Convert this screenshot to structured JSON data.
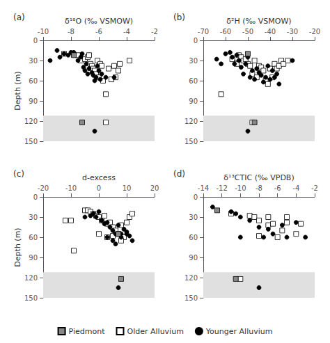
{
  "chart_data": [
    {
      "type": "scatter",
      "title": "(a)",
      "xlabel": "δ¹⁸O (‰ VSMOW)",
      "ylabel": "Depth (m)",
      "xlim": [
        -10,
        -2
      ],
      "xticks": [
        -10,
        -8,
        -6,
        -4,
        -2
      ],
      "ylim": [
        0,
        150
      ],
      "yticks": [
        0,
        30,
        60,
        90,
        120,
        150
      ],
      "shaded_band": [
        112,
        150
      ],
      "shaded_color": "#e0e0e0",
      "grid": false,
      "legend": "bottom",
      "series": [
        {
          "name": "Piedmont",
          "color": "#888888",
          "marker": "square",
          "x": [
            -7.8,
            -7.2
          ],
          "y": [
            22,
            122
          ]
        },
        {
          "name": "Older Alluvium",
          "color": "#ffffff",
          "marker": "square",
          "x": [
            -8.5,
            -7.5,
            -7.3,
            -7.0,
            -6.8,
            -6.7,
            -6.6,
            -6.5,
            -6.4,
            -6.3,
            -6.2,
            -6.1,
            -6.0,
            -5.9,
            -5.8,
            -5.7,
            -5.5,
            -5.3,
            -5.1,
            -4.9,
            -4.8,
            -4.6,
            -4.5,
            -3.8,
            -5.5
          ],
          "y": [
            20,
            22,
            30,
            28,
            25,
            22,
            35,
            38,
            42,
            45,
            50,
            30,
            55,
            35,
            38,
            60,
            80,
            42,
            58,
            38,
            55,
            45,
            35,
            30,
            122
          ]
        },
        {
          "name": "Younger Alluvium",
          "color": "#000000",
          "marker": "circle",
          "x": [
            -9.5,
            -9.0,
            -8.8,
            -8.5,
            -8.2,
            -8.0,
            -7.8,
            -7.5,
            -7.3,
            -7.2,
            -7.1,
            -7.0,
            -6.9,
            -6.8,
            -6.7,
            -6.5,
            -6.4,
            -6.3,
            -6.2,
            -6.1,
            -6.0,
            -5.9,
            -5.8,
            -5.5,
            -4.9,
            -6.3
          ],
          "y": [
            30,
            15,
            25,
            20,
            22,
            18,
            18,
            30,
            25,
            20,
            40,
            45,
            35,
            50,
            42,
            48,
            52,
            60,
            55,
            38,
            45,
            58,
            50,
            55,
            55,
            135
          ]
        }
      ]
    },
    {
      "type": "scatter",
      "title": "(b)",
      "xlabel": "δ²H (‰ VSMOW)",
      "xlim": [
        -70,
        -20
      ],
      "xticks": [
        -70,
        -60,
        -50,
        -40,
        -30,
        -20
      ],
      "ylim": [
        0,
        150
      ],
      "yticks": [
        0,
        30,
        60,
        90,
        120,
        150
      ],
      "shaded_band": [
        112,
        150
      ],
      "shaded_color": "#e0e0e0",
      "grid": false,
      "legend": "bottom",
      "series": [
        {
          "name": "Piedmont",
          "color": "#888888",
          "marker": "square",
          "x": [
            -50,
            -47
          ],
          "y": [
            20,
            122
          ]
        },
        {
          "name": "Older Alluvium",
          "color": "#ffffff",
          "marker": "square",
          "x": [
            -62,
            -57,
            -55,
            -54,
            -53,
            -52,
            -51,
            -50,
            -49,
            -48,
            -47,
            -46,
            -45,
            -44,
            -43,
            -42,
            -41,
            -40,
            -39,
            -38,
            -37,
            -36,
            -35,
            -34,
            -32,
            -48,
            -55
          ],
          "y": [
            80,
            28,
            33,
            22,
            25,
            30,
            28,
            35,
            38,
            50,
            30,
            55,
            38,
            40,
            45,
            60,
            65,
            42,
            55,
            35,
            42,
            38,
            30,
            35,
            30,
            122,
            35
          ]
        },
        {
          "name": "Younger Alluvium",
          "color": "#000000",
          "marker": "circle",
          "x": [
            -64,
            -62,
            -60,
            -58,
            -57,
            -56,
            -55,
            -54,
            -53,
            -52,
            -51,
            -50,
            -49,
            -48,
            -47,
            -46,
            -45,
            -44,
            -43,
            -42,
            -41,
            -40,
            -39,
            -38,
            -37,
            -36,
            -30,
            -50
          ],
          "y": [
            28,
            35,
            20,
            18,
            25,
            35,
            22,
            30,
            40,
            50,
            35,
            25,
            55,
            45,
            58,
            42,
            48,
            52,
            62,
            55,
            38,
            58,
            45,
            55,
            50,
            65,
            30,
            135
          ]
        }
      ]
    },
    {
      "type": "scatter",
      "title": "(c)",
      "xlabel": "d-excess",
      "ylabel": "Depth (m)",
      "xlim": [
        -20,
        20
      ],
      "xticks": [
        -20,
        -10,
        0,
        10,
        20
      ],
      "ylim": [
        0,
        150
      ],
      "yticks": [
        0,
        30,
        60,
        90,
        120,
        150
      ],
      "shaded_band": [
        112,
        150
      ],
      "shaded_color": "#e0e0e0",
      "grid": false,
      "legend": "bottom",
      "series": [
        {
          "name": "Piedmont",
          "color": "#888888",
          "marker": "square",
          "x": [
            7,
            8
          ],
          "y": [
            55,
            122
          ]
        },
        {
          "name": "Older Alluvium",
          "color": "#ffffff",
          "marker": "square",
          "x": [
            -12,
            -10,
            -9,
            -5,
            -4,
            -3,
            -2,
            -1,
            0,
            1,
            2,
            3,
            4,
            5,
            6,
            7,
            8,
            9,
            10,
            11,
            12,
            0,
            5,
            8,
            3
          ],
          "y": [
            35,
            35,
            80,
            20,
            20,
            22,
            25,
            28,
            30,
            35,
            28,
            40,
            38,
            45,
            50,
            55,
            42,
            60,
            38,
            30,
            25,
            55,
            58,
            65,
            60
          ]
        },
        {
          "name": "Younger Alluvium",
          "color": "#000000",
          "marker": "circle",
          "x": [
            -5,
            -3,
            -2,
            -1,
            0,
            1,
            2,
            3,
            4,
            5,
            6,
            7,
            8,
            9,
            10,
            11,
            12,
            3,
            5,
            8,
            6,
            10,
            7
          ],
          "y": [
            30,
            28,
            25,
            30,
            22,
            35,
            40,
            38,
            45,
            50,
            55,
            42,
            60,
            48,
            52,
            58,
            65,
            60,
            65,
            55,
            70,
            55,
            135
          ]
        }
      ]
    },
    {
      "type": "scatter",
      "title": "(d)",
      "xlabel": "δ¹³CTIC (‰ VPDB)",
      "xlim": [
        -14,
        -2
      ],
      "xticks": [
        -14,
        -12,
        -10,
        -8,
        -6,
        -4,
        -2
      ],
      "ylim": [
        0,
        150
      ],
      "yticks": [
        0,
        30,
        60,
        90,
        120,
        150
      ],
      "shaded_band": [
        112,
        150
      ],
      "shaded_color": "#e0e0e0",
      "grid": false,
      "legend": "bottom",
      "series": [
        {
          "name": "Piedmont",
          "color": "#888888",
          "marker": "square",
          "x": [
            -12.5,
            -10.5
          ],
          "y": [
            20,
            122
          ]
        },
        {
          "name": "Older Alluvium",
          "color": "#ffffff",
          "marker": "square",
          "x": [
            -11,
            -9,
            -8.5,
            -8,
            -7,
            -6.5,
            -5.5,
            -5,
            -4,
            -8,
            -6,
            -5,
            -7,
            -3.5,
            -10
          ],
          "y": [
            25,
            28,
            30,
            35,
            42,
            40,
            50,
            38,
            55,
            58,
            60,
            30,
            30,
            40,
            122
          ]
        },
        {
          "name": "Younger Alluvium",
          "color": "#000000",
          "marker": "circle",
          "x": [
            -13,
            -11,
            -10.5,
            -10,
            -9,
            -8,
            -7,
            -6.5,
            -5.5,
            -5,
            -4,
            -3,
            -10,
            -8,
            -7.5
          ],
          "y": [
            15,
            22,
            25,
            30,
            35,
            45,
            48,
            55,
            42,
            60,
            38,
            60,
            60,
            135,
            60
          ]
        }
      ]
    }
  ]
}
